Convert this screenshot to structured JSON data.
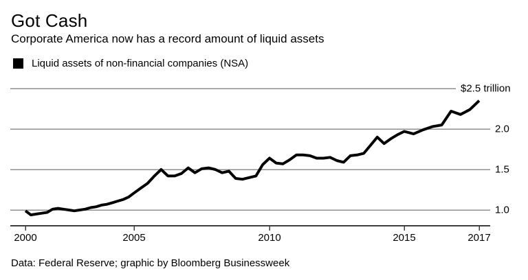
{
  "header": {
    "title": "Got Cash",
    "subtitle": "Corporate America now has a record amount of liquid assets"
  },
  "legend": {
    "label": "Liquid assets of non-financial companies (NSA)",
    "swatch_color": "#000000"
  },
  "footer": {
    "credit": "Data: Federal Reserve; graphic by Bloomberg Businessweek"
  },
  "colors": {
    "line": "#000000",
    "gridline": "#8f8f8f",
    "axis": "#3d3d3d",
    "text": "#000000",
    "background": "#ffffff"
  },
  "chart_data": {
    "type": "line",
    "title": "Got Cash",
    "subtitle": "Corporate America now has a record amount of liquid assets",
    "xlabel": "",
    "ylabel": "",
    "grid": "horizontal",
    "legend_position": "top-left",
    "x_ticks": [
      2000,
      2005,
      2010,
      2015,
      2017
    ],
    "x_tick_labels": [
      "2000",
      "2005",
      "2010",
      "2015",
      "2017"
    ],
    "y_ticks": [
      2.5,
      2.0,
      1.5,
      1.0
    ],
    "y_tick_labels": [
      "$2.5 trillion",
      "2.0",
      "1.5",
      "1.0"
    ],
    "xlim": [
      2000,
      2017
    ],
    "ylim": [
      0.8,
      2.6
    ],
    "series": [
      {
        "name": "Liquid assets of non-financial companies (NSA)",
        "color": "#000000",
        "x": [
          2000.0,
          2000.25,
          2000.5,
          2000.75,
          2001.0,
          2001.25,
          2001.5,
          2001.75,
          2002.0,
          2002.25,
          2002.5,
          2002.75,
          2003.0,
          2003.25,
          2003.5,
          2003.75,
          2004.0,
          2004.25,
          2004.5,
          2004.75,
          2005.0,
          2005.25,
          2005.5,
          2005.75,
          2006.0,
          2006.25,
          2006.5,
          2006.75,
          2007.0,
          2007.25,
          2007.5,
          2007.75,
          2008.0,
          2008.25,
          2008.5,
          2008.75,
          2009.0,
          2009.25,
          2009.5,
          2009.75,
          2010.0,
          2010.25,
          2010.5,
          2010.75,
          2011.0,
          2011.25,
          2011.5,
          2011.75,
          2012.0,
          2012.25,
          2012.5,
          2012.75,
          2013.0,
          2013.25,
          2013.5,
          2013.75,
          2014.0,
          2014.25,
          2014.5,
          2014.75,
          2015.0,
          2015.25,
          2015.5,
          2015.75,
          2016.0,
          2016.25,
          2016.5,
          2016.75,
          2017.0
        ],
        "values": [
          0.99,
          0.94,
          0.95,
          0.96,
          0.97,
          1.01,
          1.02,
          1.01,
          1.0,
          0.99,
          1.0,
          1.01,
          1.03,
          1.04,
          1.06,
          1.07,
          1.09,
          1.11,
          1.13,
          1.16,
          1.21,
          1.27,
          1.33,
          1.42,
          1.5,
          1.42,
          1.42,
          1.45,
          1.52,
          1.46,
          1.51,
          1.52,
          1.5,
          1.46,
          1.48,
          1.39,
          1.38,
          1.4,
          1.42,
          1.56,
          1.64,
          1.58,
          1.57,
          1.62,
          1.68,
          1.68,
          1.67,
          1.64,
          1.64,
          1.65,
          1.61,
          1.59,
          1.67,
          1.68,
          1.7,
          1.8,
          1.9,
          1.82,
          1.88,
          1.93,
          1.97,
          1.94,
          1.99,
          2.03,
          2.05,
          2.22,
          2.18,
          2.24,
          2.35
        ]
      }
    ]
  }
}
